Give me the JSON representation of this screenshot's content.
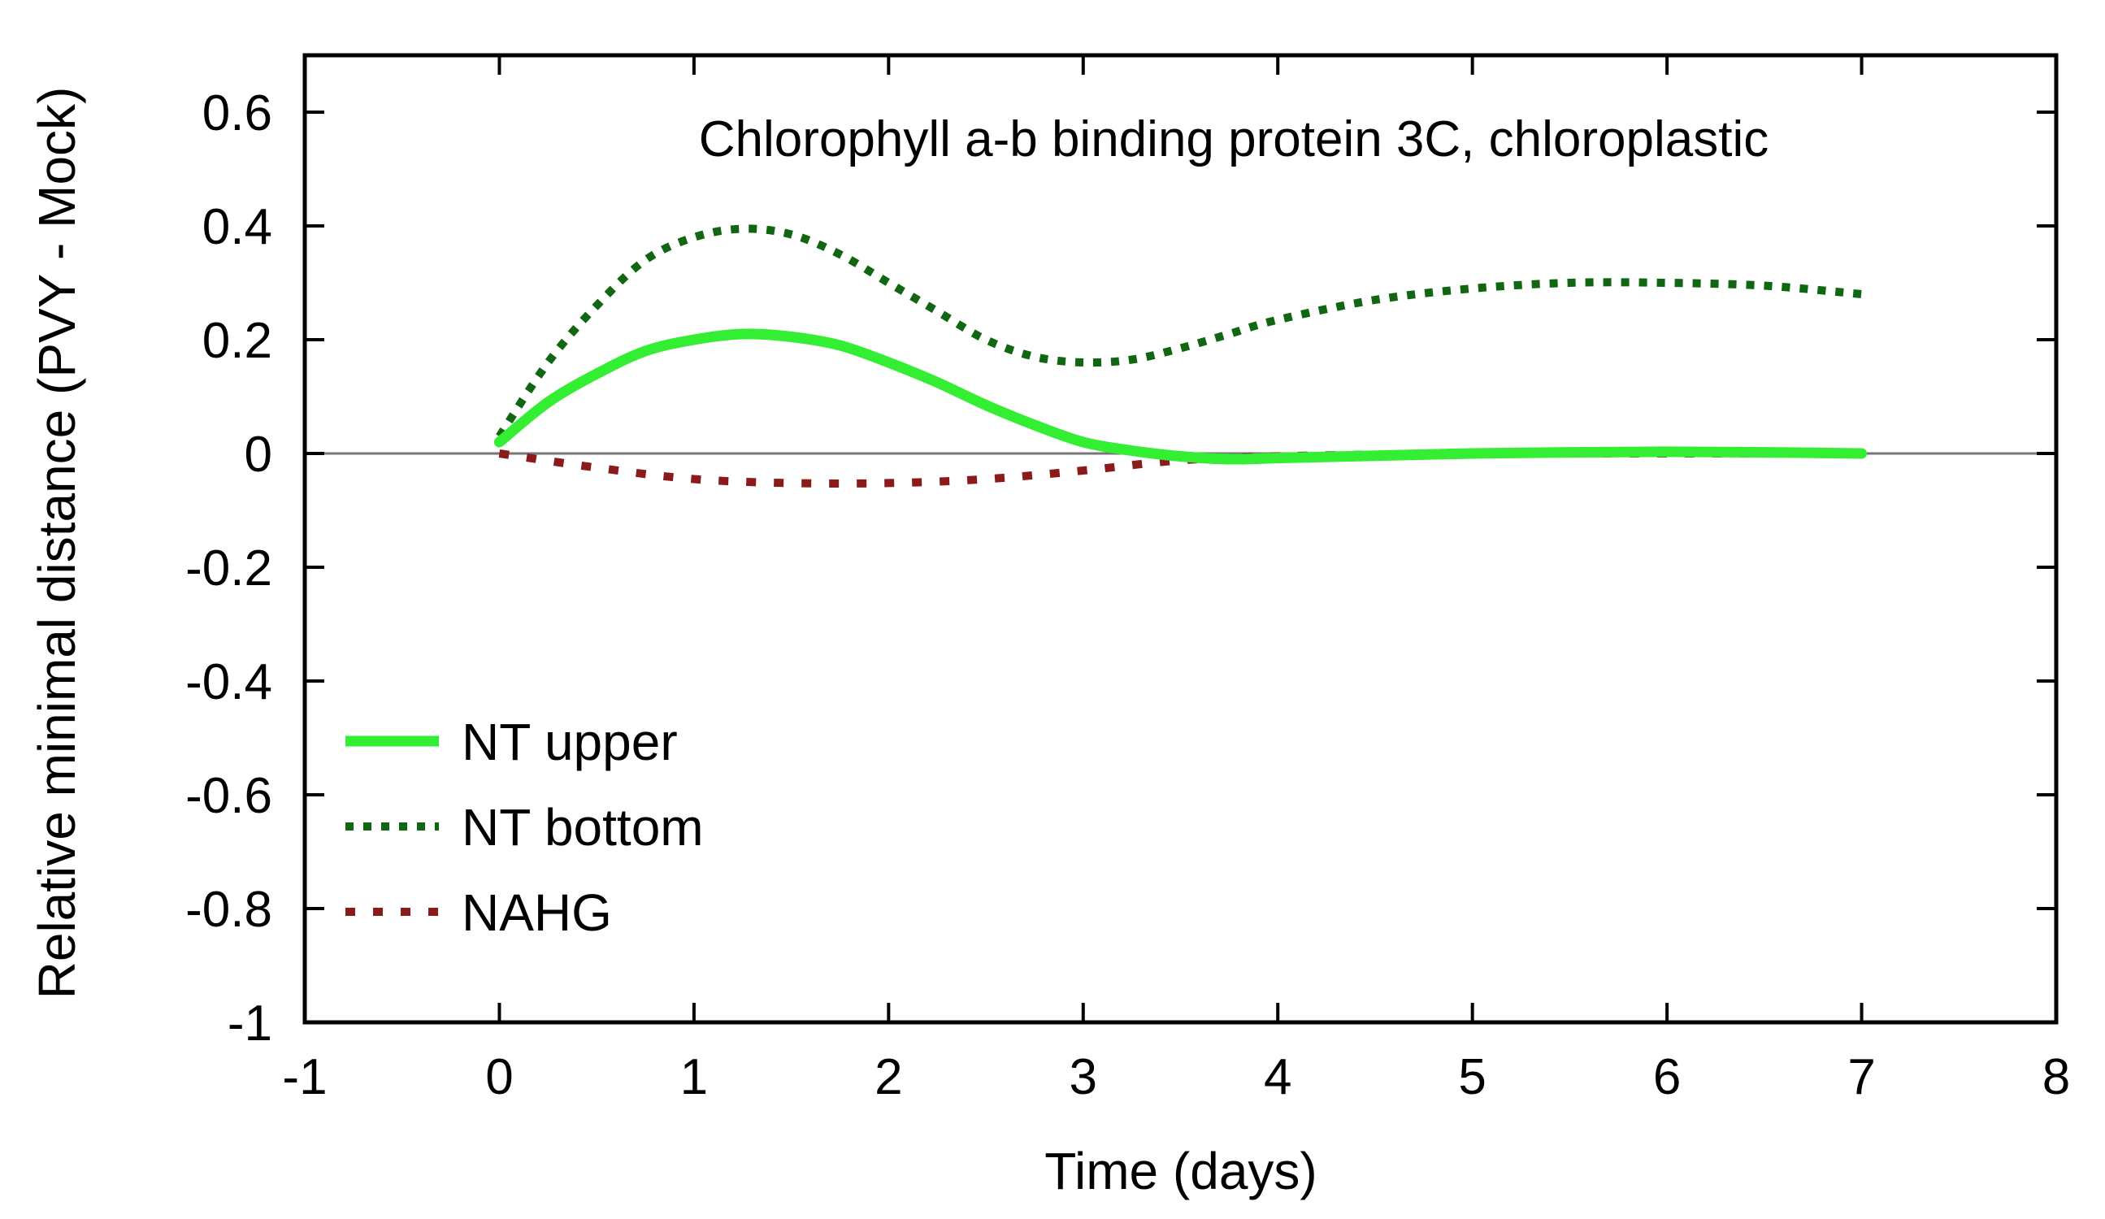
{
  "chart_data": {
    "type": "line",
    "annotation": "Chlorophyll a-b binding protein 3C, chloroplastic",
    "xlabel": "Time (days)",
    "ylabel": "Relative minimal distance (PVY - Mock)",
    "xlim": [
      -1,
      8
    ],
    "ylim": [
      -1,
      0.7
    ],
    "xticks": [
      "-1",
      "0",
      "1",
      "2",
      "3",
      "4",
      "5",
      "6",
      "7",
      "8"
    ],
    "yticks": [
      "-1",
      "-0.8",
      "-0.6",
      "-0.4",
      "-0.2",
      "0",
      "0.2",
      "0.4",
      "0.6"
    ],
    "reference_line": 0,
    "legend_position": "bottom-left",
    "series": [
      {
        "name": "NT upper",
        "color": "#33ee33",
        "style": "solid",
        "x": [
          0,
          0.25,
          0.5,
          0.75,
          1,
          1.25,
          1.5,
          1.75,
          2,
          2.25,
          2.5,
          2.75,
          3,
          3.25,
          3.5,
          3.75,
          4,
          4.5,
          5,
          5.5,
          6,
          6.5,
          7
        ],
        "y": [
          0.02,
          0.09,
          0.14,
          0.18,
          0.2,
          0.21,
          0.205,
          0.19,
          0.16,
          0.125,
          0.085,
          0.05,
          0.02,
          0.005,
          -0.005,
          -0.01,
          -0.008,
          -0.004,
          0,
          0.002,
          0.003,
          0.002,
          0
        ]
      },
      {
        "name": "NT bottom",
        "color": "#116611",
        "style": "dotted",
        "x": [
          0,
          0.25,
          0.5,
          0.75,
          1,
          1.25,
          1.5,
          1.75,
          2,
          2.25,
          2.5,
          2.75,
          3,
          3.25,
          3.5,
          3.75,
          4,
          4.5,
          5,
          5.5,
          6,
          6.5,
          7
        ],
        "y": [
          0.03,
          0.16,
          0.26,
          0.34,
          0.38,
          0.395,
          0.385,
          0.35,
          0.3,
          0.25,
          0.2,
          0.17,
          0.16,
          0.165,
          0.185,
          0.21,
          0.235,
          0.27,
          0.29,
          0.3,
          0.3,
          0.295,
          0.28
        ]
      },
      {
        "name": "NAHG",
        "color": "#8b1a1a",
        "style": "dashed",
        "x": [
          0,
          0.5,
          1,
          1.5,
          2,
          2.5,
          3,
          3.5,
          4,
          4.5,
          5,
          5.5,
          6,
          6.5,
          7
        ],
        "y": [
          0,
          -0.025,
          -0.045,
          -0.052,
          -0.052,
          -0.045,
          -0.03,
          -0.012,
          -0.005,
          -0.002,
          0,
          0,
          0,
          0,
          0
        ]
      }
    ]
  }
}
